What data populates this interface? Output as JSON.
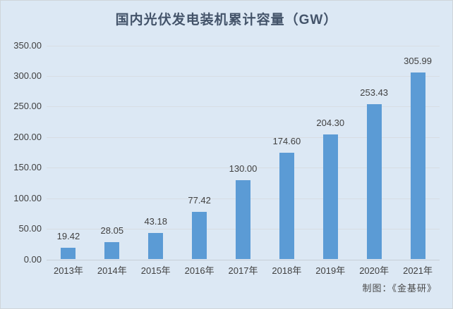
{
  "title": "国内光伏发电装机累计容量（GW）",
  "attribution": "制图：《金基研》",
  "colors": {
    "background": "#dce8f4",
    "bar": "#5b9bd5",
    "title_text": "#44546a",
    "axis_text": "#404040",
    "gridline": "#d7dde3"
  },
  "chart_data": {
    "type": "bar",
    "title": "国内光伏发电装机累计容量（GW）",
    "categories": [
      "2013年",
      "2014年",
      "2015年",
      "2016年",
      "2017年",
      "2018年",
      "2019年",
      "2020年",
      "2021年"
    ],
    "values": [
      19.42,
      28.05,
      43.18,
      77.42,
      130.0,
      174.6,
      204.3,
      253.43,
      305.99
    ],
    "value_labels": [
      "19.42",
      "28.05",
      "43.18",
      "77.42",
      "130.00",
      "174.60",
      "204.30",
      "253.43",
      "305.99"
    ],
    "xlabel": "",
    "ylabel": "",
    "ylim": [
      0,
      350
    ],
    "ytick_step": 50,
    "ytick_labels": [
      "0.00",
      "50.00",
      "100.00",
      "150.00",
      "200.00",
      "250.00",
      "300.00",
      "350.00"
    ],
    "grid": true,
    "legend": "none"
  }
}
